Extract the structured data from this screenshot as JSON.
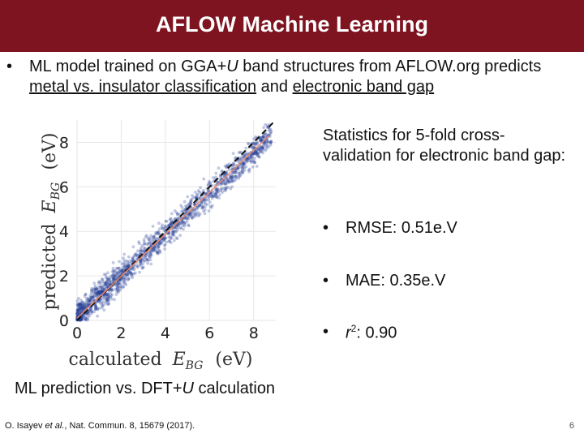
{
  "header": {
    "title": "AFLOW Machine Learning"
  },
  "intro": {
    "bullet": "•",
    "part1": "ML model trained on GGA+",
    "part1_italic": "U",
    "part2": " band structures from AFLOW.org predicts ",
    "link1": "metal vs. insulator classification",
    "part3": " and ",
    "link2": "electronic band gap"
  },
  "chart_data": {
    "type": "scatter",
    "xlabel": "calculated E_BG (eV)",
    "xlabel_main": "calculated",
    "xlabel_sym": "E",
    "xlabel_sub": "BG",
    "xlabel_unit": "(eV)",
    "ylabel_main": "predicted",
    "ylabel_sym": "E",
    "ylabel_sub": "BG",
    "ylabel_unit": "(eV)",
    "xlim": [
      0,
      9
    ],
    "ylim": [
      0,
      9
    ],
    "xticks": [
      "0",
      "2",
      "4",
      "6",
      "8"
    ],
    "yticks": [
      "0",
      "2",
      "4",
      "6",
      "8"
    ],
    "grid": true,
    "point_color": "#1f3a93",
    "series": [
      {
        "type": "identity_line",
        "style": "dashed",
        "color": "#111111",
        "x": [
          0,
          9
        ],
        "y": [
          0,
          9
        ]
      },
      {
        "type": "fit_line",
        "color": "#f08a6b",
        "x": [
          0,
          8.7
        ],
        "y": [
          0.1,
          8.3
        ]
      }
    ]
  },
  "caption": {
    "pre": "ML prediction vs. DFT+",
    "italic": "U",
    "post": " calculation"
  },
  "stats": {
    "heading": "Statistics for 5-fold cross-validation for electronic band gap:",
    "bullet": "•",
    "rmse": "RMSE: 0.51e.V",
    "mae": "MAE: 0.35e.V",
    "r2_sym": "r",
    "r2_sup": "2",
    "r2_val": ": 0.90"
  },
  "footer": {
    "ref_author": "O. Isayev ",
    "ref_etal": "et al.",
    "ref_rest": ", Nat. Commun. 8, 15679 (2017).",
    "page": "6"
  }
}
